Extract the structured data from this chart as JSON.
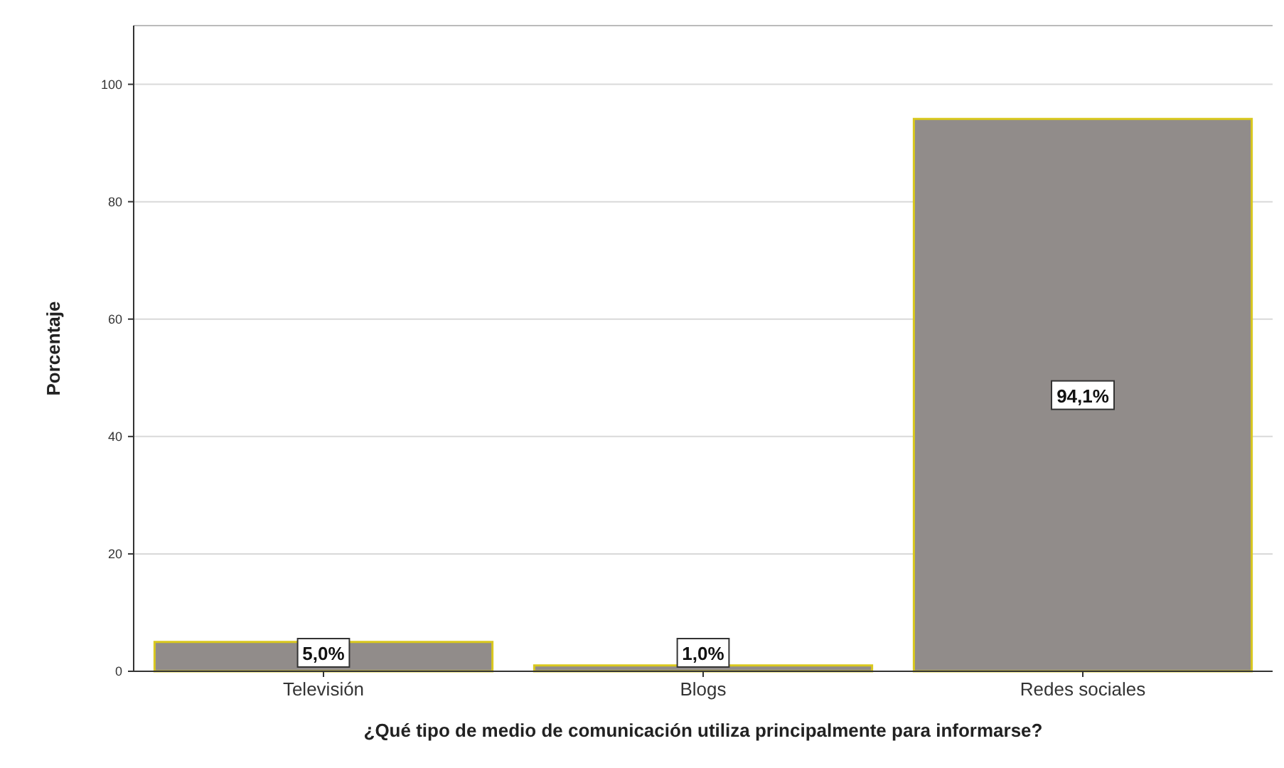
{
  "chart_data": {
    "type": "bar",
    "xlabel": "¿Qué tipo de medio de comunicación utiliza principalmente para informarse?",
    "ylabel": "Porcentaje",
    "categories": [
      "Televisión",
      "Blogs",
      "Redes sociales"
    ],
    "values": [
      5.0,
      1.0,
      94.1
    ],
    "value_labels": [
      "5,0%",
      "1,0%",
      "94,1%"
    ],
    "color": "#918c8a",
    "ylim": [
      0,
      110
    ],
    "yticks": [
      0,
      20,
      40,
      60,
      80,
      100
    ],
    "grid": "y"
  }
}
